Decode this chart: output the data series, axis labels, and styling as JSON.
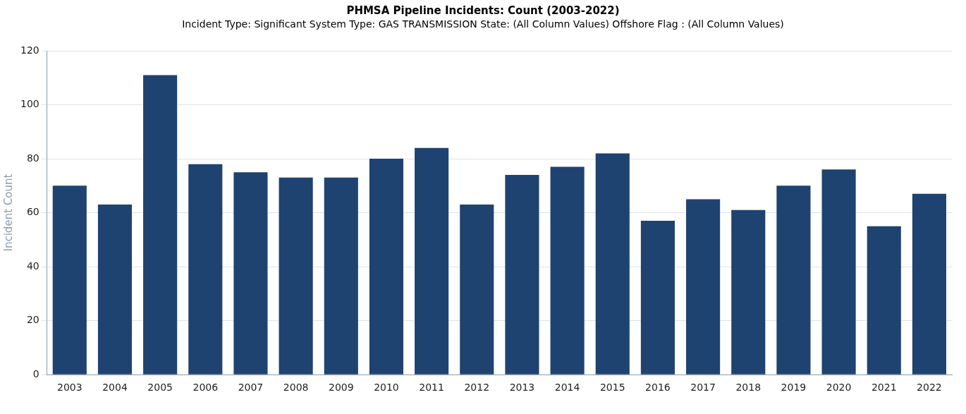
{
  "chart_data": {
    "type": "bar",
    "title": "PHMSA Pipeline Incidents: Count (2003-2022)",
    "subtitle": "Incident Type: Significant   System Type: GAS TRANSMISSION   State: (All Column Values)   Offshore Flag : (All Column Values)",
    "ylabel": "Incident Count",
    "categories": [
      "2003",
      "2004",
      "2005",
      "2006",
      "2007",
      "2008",
      "2009",
      "2010",
      "2011",
      "2012",
      "2013",
      "2014",
      "2015",
      "2016",
      "2017",
      "2018",
      "2019",
      "2020",
      "2021",
      "2022"
    ],
    "values": [
      70,
      63,
      111,
      78,
      75,
      73,
      73,
      80,
      84,
      63,
      74,
      77,
      82,
      57,
      65,
      61,
      70,
      76,
      55,
      67
    ],
    "color": "#1f4370",
    "ylim": [
      0,
      120
    ],
    "yticks": [
      0,
      20,
      40,
      60,
      80,
      100,
      120
    ],
    "grid": "y",
    "legend": false
  }
}
